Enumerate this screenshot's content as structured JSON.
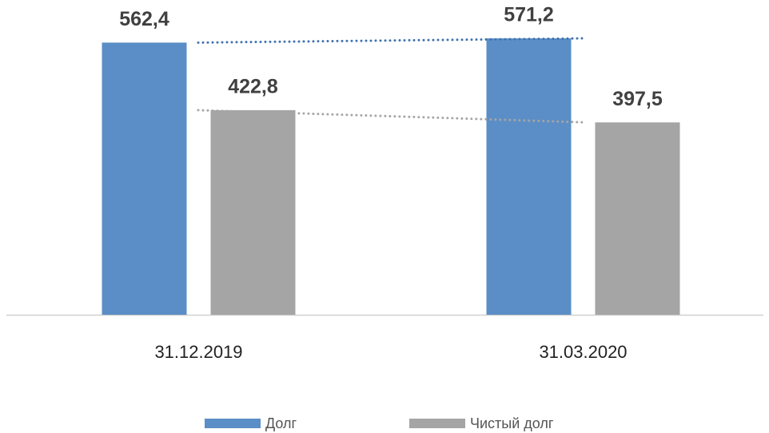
{
  "chart_data": {
    "type": "bar",
    "categories": [
      "31.12.2019",
      "31.03.2020"
    ],
    "series": [
      {
        "name": "Долг",
        "color": "#5b8ec6",
        "values": [
          562.4,
          571.2
        ],
        "value_labels": [
          "562,4",
          "571,2"
        ]
      },
      {
        "name": "Чистый долг",
        "color": "#a5a5a5",
        "values": [
          422.8,
          397.5
        ],
        "value_labels": [
          "422,8",
          "397,5"
        ]
      }
    ],
    "trendlines": true,
    "legend": "bottom"
  }
}
